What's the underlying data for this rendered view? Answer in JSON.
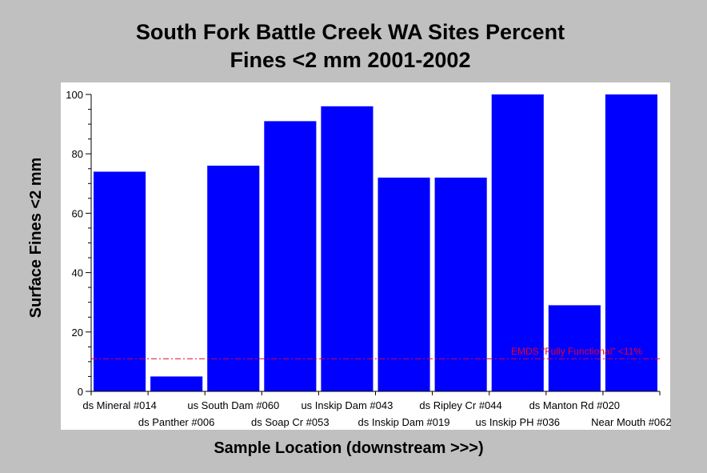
{
  "chart_data": {
    "type": "bar",
    "title_lines": [
      "South Fork Battle Creek WA Sites Percent",
      "Fines <2 mm 2001-2002"
    ],
    "xlabel": "Sample Location (downstream >>>)",
    "ylabel": "Surface Fines <2 mm",
    "ylim": [
      0,
      100
    ],
    "yticks": [
      0,
      20,
      40,
      60,
      80,
      100
    ],
    "categories": [
      "ds Mineral #014",
      "ds Panther #006",
      "us South Dam #060",
      "ds Soap Cr #053",
      "us Inskip Dam #043",
      "ds Inskip Dam #019",
      "ds Ripley Cr #044",
      "us Inskip PH #036",
      "ds Manton Rd #020",
      "Near Mouth #062"
    ],
    "values": [
      74,
      5,
      76,
      91,
      96,
      72,
      72,
      100,
      29,
      100
    ],
    "bar_color": "#0000ff",
    "reference_line": {
      "value": 11,
      "label": "EMDS \"Fully Functional\" <11%",
      "color": "#e8002a"
    },
    "grid": false,
    "legend": "none"
  }
}
